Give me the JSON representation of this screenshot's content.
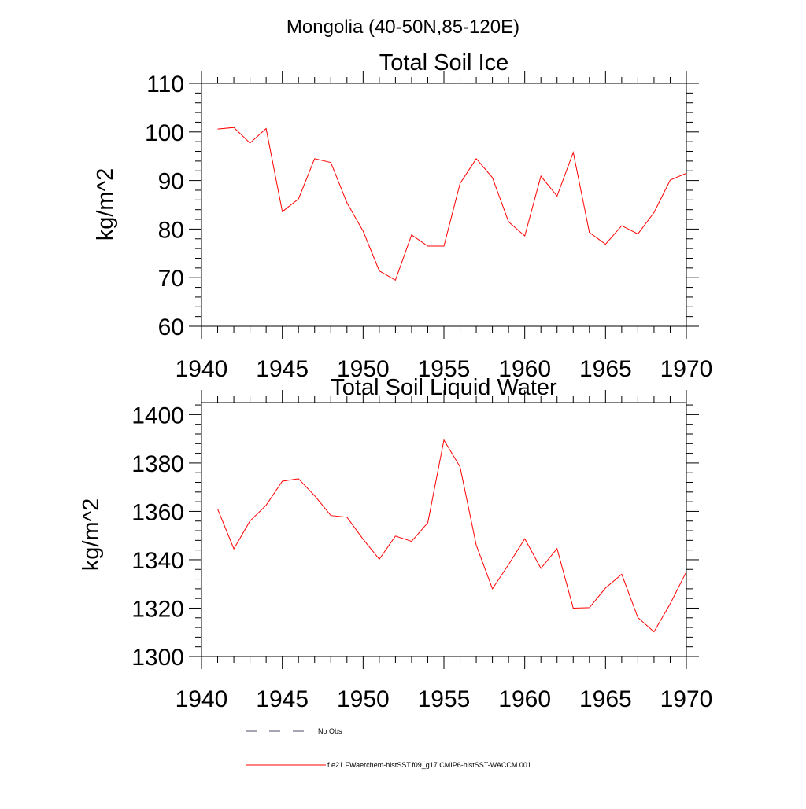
{
  "figure": {
    "suptitle": "Mongolia (40-50N,85-120E)"
  },
  "chart_data": [
    {
      "type": "line",
      "title": "Total Soil Ice",
      "xlabel": "",
      "ylabel": "kg/m^2",
      "xlim": [
        1940,
        1970
      ],
      "ylim": [
        60,
        110
      ],
      "xticks": [
        1940,
        1945,
        1950,
        1955,
        1960,
        1965,
        1970
      ],
      "yticks": [
        60,
        70,
        80,
        90,
        100,
        110
      ],
      "grid": false,
      "series": [
        {
          "name": "f.e21.FWaerchem-histSST.f09_g17.CMIP6-histSST-WACCM.001",
          "color": "#ff0000",
          "x": [
            1941,
            1942,
            1943,
            1944,
            1945,
            1946,
            1947,
            1948,
            1949,
            1950,
            1951,
            1952,
            1953,
            1954,
            1955,
            1956,
            1957,
            1958,
            1959,
            1960,
            1961,
            1962,
            1963,
            1964,
            1965,
            1966,
            1967,
            1968,
            1969,
            1970
          ],
          "y": [
            100.6,
            100.9,
            97.7,
            100.7,
            83.6,
            86.2,
            94.5,
            93.7,
            85.4,
            79.6,
            71.4,
            69.5,
            78.8,
            76.5,
            76.5,
            89.4,
            94.5,
            90.6,
            81.5,
            78.6,
            90.9,
            86.8,
            95.8,
            79.3,
            76.9,
            80.7,
            79.0,
            83.4,
            90.1,
            91.5
          ]
        }
      ]
    },
    {
      "type": "line",
      "title": "Total Soil Liquid Water",
      "xlabel": "",
      "ylabel": "kg/m^2",
      "xlim": [
        1940,
        1970
      ],
      "ylim": [
        1300,
        1405
      ],
      "xticks": [
        1940,
        1945,
        1950,
        1955,
        1960,
        1965,
        1970
      ],
      "yticks": [
        1300,
        1320,
        1340,
        1360,
        1380,
        1400
      ],
      "grid": false,
      "series": [
        {
          "name": "f.e21.FWaerchem-histSST.f09_g17.CMIP6-histSST-WACCM.001",
          "color": "#ff0000",
          "x": [
            1941,
            1942,
            1943,
            1944,
            1945,
            1946,
            1947,
            1948,
            1949,
            1950,
            1951,
            1952,
            1953,
            1954,
            1955,
            1956,
            1957,
            1958,
            1959,
            1960,
            1961,
            1962,
            1963,
            1964,
            1965,
            1966,
            1967,
            1968,
            1969,
            1970
          ],
          "y": [
            1361,
            1344.5,
            1356,
            1362.5,
            1372.5,
            1373.5,
            1366.5,
            1358.3,
            1357.6,
            1348.5,
            1340.2,
            1349.8,
            1347.6,
            1355.3,
            1389.5,
            1378.4,
            1346,
            1328,
            1338,
            1348.7,
            1336.4,
            1344.6,
            1320,
            1320.2,
            1328.3,
            1334,
            1316.1,
            1310.2,
            1321.8,
            1335
          ]
        }
      ]
    }
  ],
  "legend": {
    "placement": "bottom",
    "items": [
      {
        "label": "No Obs",
        "color": "#4a4a6a",
        "style": "dashed"
      },
      {
        "label": "f.e21.FWaerchem-histSST.f09_g17.CMIP6-histSST-WACCM.001",
        "color": "#ff0000",
        "style": "solid"
      }
    ]
  }
}
